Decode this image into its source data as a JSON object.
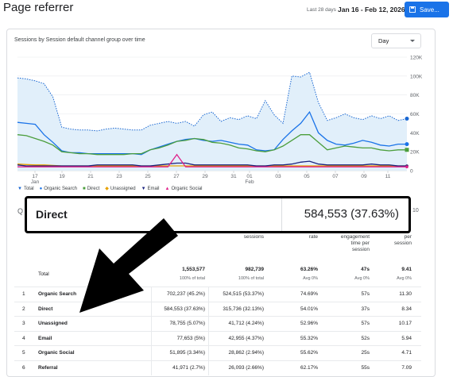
{
  "header": {
    "title": "Page referrer",
    "date_label": "Last 28 days",
    "date_range": "Jan 16 - Feb 12, 2026",
    "save_label": "Save..."
  },
  "card": {
    "title": "Sessions by Session default channel group over time",
    "granularity": "Day"
  },
  "chart_data": {
    "type": "line",
    "title": "Sessions by Session default channel group over time",
    "ylim": [
      0,
      120000
    ],
    "y_ticks": [
      "0",
      "20K",
      "40K",
      "60K",
      "80K",
      "100K",
      "120K"
    ],
    "x_ticks": [
      "17",
      "19",
      "21",
      "23",
      "25",
      "27",
      "29",
      "31",
      "01",
      "03",
      "05",
      "07",
      "09",
      "11"
    ],
    "x_month_label": "Feb",
    "x_labels_extra": [
      "Jan"
    ],
    "grid": true,
    "series": [
      {
        "name": "Total",
        "color": "#1967d2",
        "dashed": true,
        "fill": "#e1effa",
        "values": [
          98000,
          97000,
          95000,
          92000,
          78000,
          46000,
          44000,
          43000,
          43000,
          42000,
          44000,
          45000,
          44000,
          43000,
          43000,
          48000,
          50000,
          52000,
          50000,
          52000,
          47000,
          59000,
          62000,
          52000,
          56000,
          54000,
          58000,
          55000,
          74000,
          59000,
          50000,
          100000,
          99000,
          104000,
          72000,
          53000,
          56000,
          60000,
          56000,
          54000,
          58000,
          55000,
          58000,
          53000,
          55000
        ]
      },
      {
        "name": "Organic Search",
        "color": "#1a73e8",
        "values": [
          51000,
          50000,
          49000,
          38000,
          30000,
          21000,
          19000,
          19000,
          18000,
          18000,
          18000,
          18000,
          18000,
          18000,
          17000,
          22000,
          25000,
          28000,
          31000,
          33000,
          34000,
          32000,
          31000,
          32000,
          30000,
          28000,
          27000,
          22000,
          21000,
          22000,
          33000,
          42000,
          50000,
          62000,
          40000,
          32000,
          28000,
          27000,
          29000,
          32000,
          30000,
          27000,
          26000,
          28000,
          28000
        ]
      },
      {
        "name": "Direct",
        "color": "#4b9e3c",
        "values": [
          38000,
          37000,
          34000,
          31000,
          27000,
          20000,
          19000,
          18000,
          18000,
          17000,
          17000,
          17000,
          17000,
          18000,
          18000,
          22000,
          24000,
          27000,
          31000,
          32000,
          34000,
          33000,
          30000,
          29000,
          27000,
          24000,
          23000,
          21000,
          20000,
          22000,
          26000,
          32000,
          38000,
          38000,
          30000,
          22000,
          24000,
          26000,
          25000,
          24000,
          24000,
          22000,
          21000,
          22000,
          22000
        ]
      },
      {
        "name": "Unassigned",
        "color": "#e8a200",
        "values": [
          7000,
          6500,
          6000,
          6000,
          5500,
          5000,
          5000,
          5000,
          5000,
          5000,
          5000,
          5000,
          5000,
          5000,
          5000,
          5000,
          5000,
          5000,
          5000,
          5000,
          5000,
          5000,
          5000,
          5000,
          5000,
          5000,
          5000,
          5000,
          5000,
          5000,
          5000,
          5000,
          5000,
          5000,
          5000,
          5000,
          5000,
          5000,
          5000,
          5000,
          5000,
          5000,
          5000,
          5000,
          5000
        ]
      },
      {
        "name": "Email",
        "color": "#1a237e",
        "values": [
          6000,
          5000,
          5000,
          5000,
          5000,
          5000,
          5000,
          5000,
          5000,
          6000,
          6000,
          6000,
          6000,
          6000,
          5000,
          5000,
          6000,
          7000,
          8000,
          8000,
          6000,
          6000,
          6000,
          6000,
          6000,
          6000,
          6000,
          5000,
          5000,
          6000,
          6000,
          7000,
          9000,
          10000,
          7000,
          6000,
          6000,
          6000,
          6000,
          6000,
          7000,
          6000,
          6000,
          5000,
          5000
        ]
      },
      {
        "name": "Organic Social",
        "color": "#e0218a",
        "values": [
          4000,
          4000,
          4000,
          4000,
          4000,
          4000,
          4000,
          4000,
          4000,
          4000,
          4000,
          4000,
          4000,
          4000,
          4000,
          4000,
          4000,
          4000,
          17000,
          4000,
          4000,
          4000,
          4000,
          4000,
          4000,
          4000,
          4000,
          4000,
          4000,
          4000,
          4000,
          4000,
          4000,
          4000,
          4000,
          4000,
          4000,
          4000,
          4000,
          4000,
          4000,
          4000,
          4000,
          4000,
          4000
        ]
      }
    ]
  },
  "tooltip": {
    "name": "Direct",
    "value": "584,553 (37.63%)"
  },
  "table": {
    "search_icon": "search-icon",
    "right_count": "10",
    "headers": [
      "sessions",
      "rate",
      "engagement time per session",
      "per session"
    ],
    "total": {
      "label": "Total",
      "users": "1,553,577",
      "users_sub": "100% of total",
      "sessions": "982,739",
      "sessions_sub": "100% of total",
      "rate": "63.26%",
      "rate_sub": "Avg 0%",
      "time": "47s",
      "time_sub": "Avg 0%",
      "per": "9.41",
      "per_sub": "Avg 0%"
    },
    "rows": [
      {
        "num": "1",
        "name": "Organic Search",
        "users": "702,237 (45.2%)",
        "sessions": "524,515 (53.37%)",
        "rate": "74.69%",
        "time": "57s",
        "per": "11.30"
      },
      {
        "num": "2",
        "name": "Direct",
        "users": "584,553 (37.63%)",
        "sessions": "315,736 (32.13%)",
        "rate": "54.01%",
        "time": "37s",
        "per": "8.34"
      },
      {
        "num": "3",
        "name": "Unassigned",
        "users": "78,755 (5.07%)",
        "sessions": "41,712 (4.24%)",
        "rate": "52.96%",
        "time": "57s",
        "per": "10.17"
      },
      {
        "num": "4",
        "name": "Email",
        "users": "77,653 (5%)",
        "sessions": "42,955 (4.37%)",
        "rate": "55.32%",
        "time": "52s",
        "per": "5.94"
      },
      {
        "num": "5",
        "name": "Organic Social",
        "users": "51,895 (3.34%)",
        "sessions": "28,862 (2.94%)",
        "rate": "55.62%",
        "time": "25s",
        "per": "4.71"
      },
      {
        "num": "6",
        "name": "Referral",
        "users": "41,971 (2.7%)",
        "sessions": "26,093 (2.66%)",
        "rate": "62.17%",
        "time": "55s",
        "per": "7.09"
      }
    ]
  }
}
